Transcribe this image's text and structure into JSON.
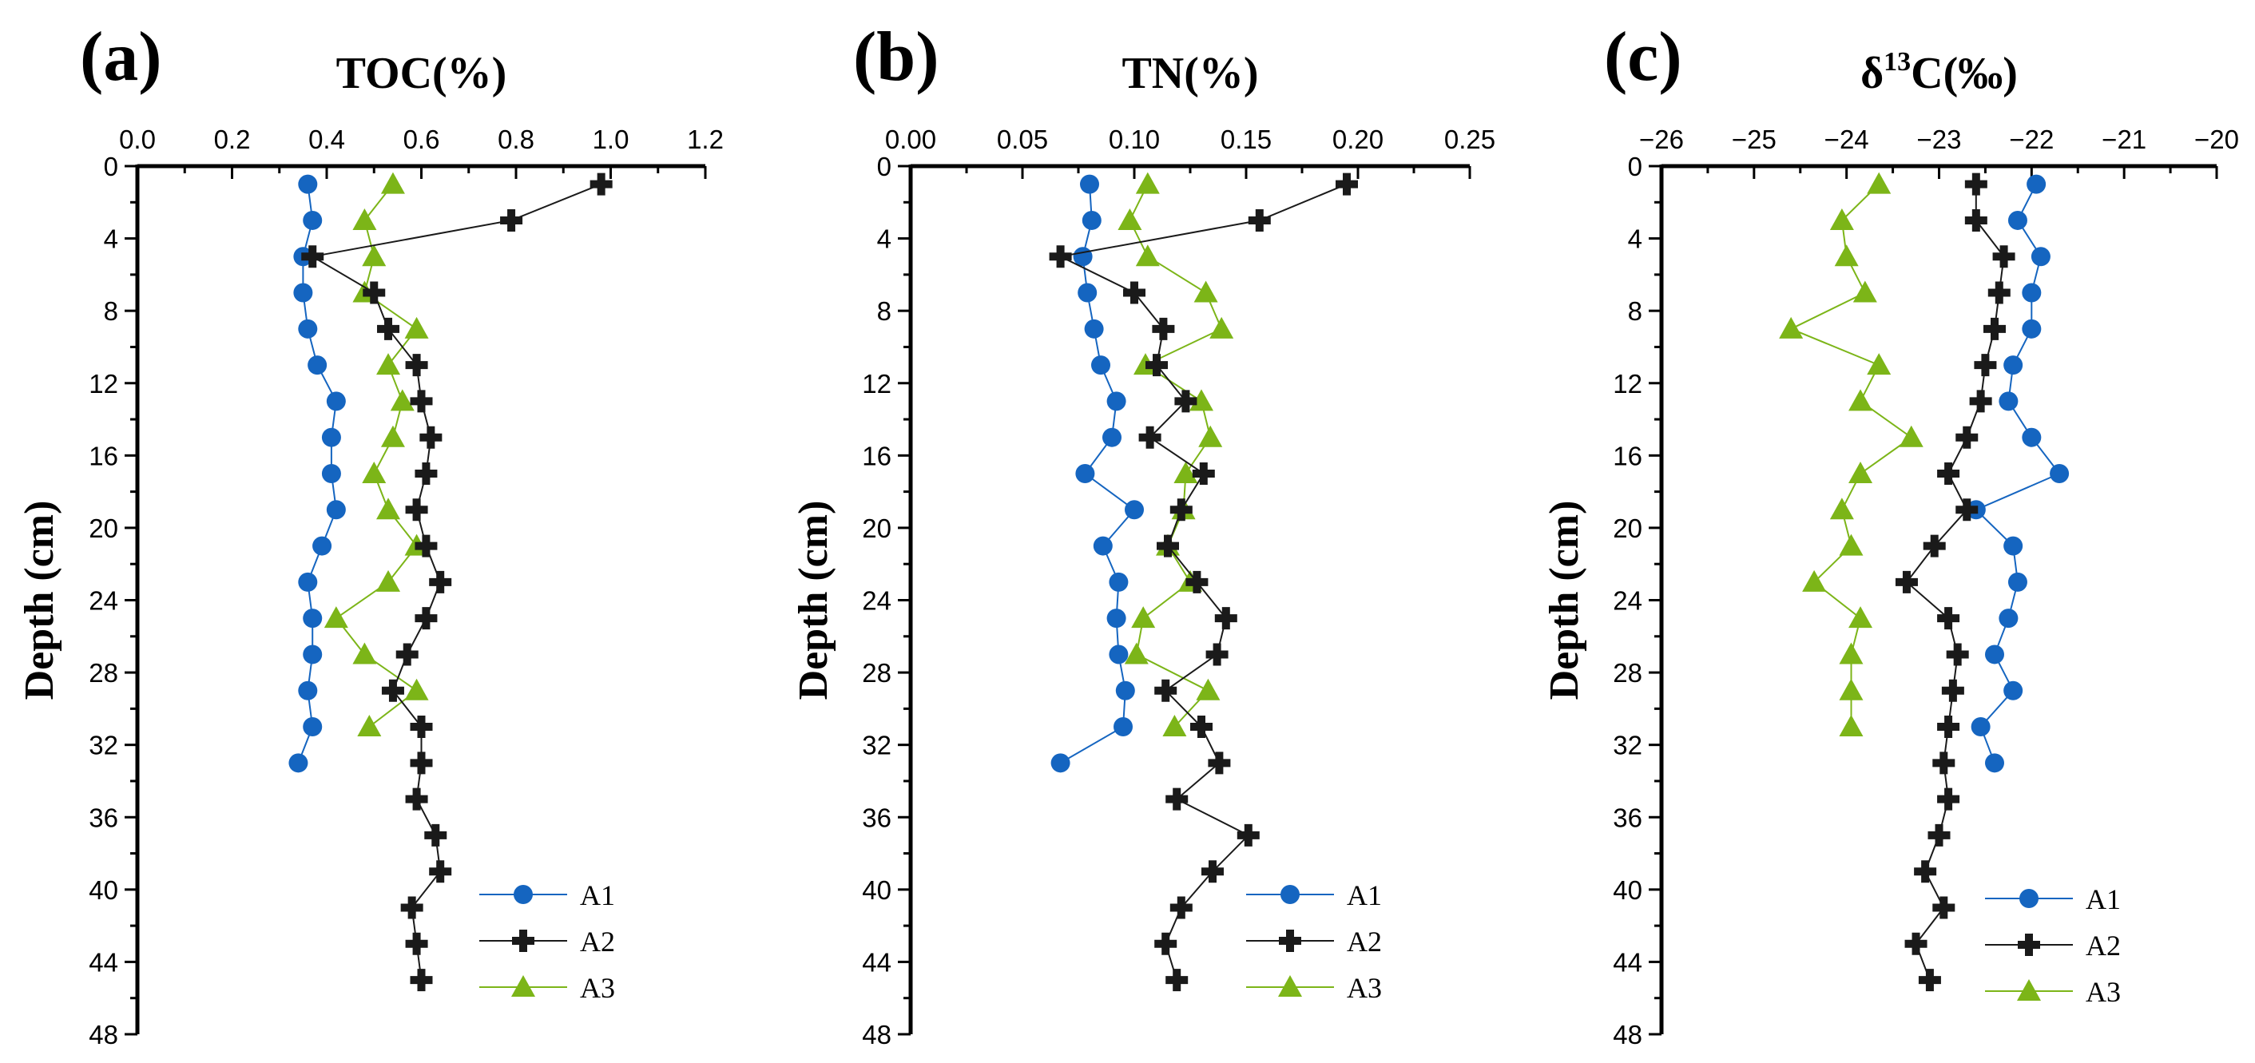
{
  "colors": {
    "A1": "#1565c0",
    "A2": "#1a1a1a",
    "A3": "#7cb518"
  },
  "chart_data": [
    {
      "type": "line",
      "panel": "(a)",
      "title": "TOC(%)",
      "xlabel": "TOC(%)",
      "ylabel": "Depth (cm)",
      "xlim": [
        0,
        1.2
      ],
      "ylim": [
        0,
        48
      ],
      "xticks": [
        0.0,
        0.2,
        0.4,
        0.6,
        0.8,
        1.0,
        1.2
      ],
      "xtick_labels": [
        "0.0",
        "0.2",
        "0.4",
        "0.6",
        "0.8",
        "1.0",
        "1.2"
      ],
      "yticks": [
        0,
        4,
        8,
        12,
        16,
        20,
        24,
        28,
        32,
        36,
        40,
        44,
        48
      ],
      "ytick_labels": [
        "0",
        "4",
        "8",
        "12",
        "16",
        "20",
        "24",
        "28",
        "32",
        "36",
        "40",
        "44",
        "48"
      ],
      "legend_position": "bottom-right",
      "series": [
        {
          "name": "A1",
          "marker": "circle",
          "x": [
            0.36,
            0.37,
            0.35,
            0.35,
            0.36,
            0.38,
            0.42,
            0.41,
            0.41,
            0.42,
            0.39,
            0.36,
            0.37,
            0.37,
            0.36,
            0.37,
            0.34
          ],
          "y": [
            1,
            3,
            5,
            7,
            9,
            11,
            13,
            15,
            17,
            19,
            21,
            23,
            25,
            27,
            29,
            31,
            33
          ]
        },
        {
          "name": "A2",
          "marker": "plus",
          "x": [
            0.98,
            0.79,
            0.37,
            0.5,
            0.53,
            0.59,
            0.6,
            0.62,
            0.61,
            0.59,
            0.61,
            0.64,
            0.61,
            0.57,
            0.54,
            0.6,
            0.6,
            0.59,
            0.63,
            0.64,
            0.58,
            0.59,
            0.6
          ],
          "y": [
            1,
            3,
            5,
            7,
            9,
            11,
            13,
            15,
            17,
            19,
            21,
            23,
            25,
            27,
            29,
            31,
            33,
            35,
            37,
            39,
            41,
            43,
            45
          ]
        },
        {
          "name": "A3",
          "marker": "triangle",
          "x": [
            0.54,
            0.48,
            0.5,
            0.48,
            0.59,
            0.53,
            0.56,
            0.54,
            0.5,
            0.53,
            0.59,
            0.53,
            0.42,
            0.48,
            0.59,
            0.49
          ],
          "y": [
            1,
            3,
            5,
            7,
            9,
            11,
            13,
            15,
            17,
            19,
            21,
            23,
            25,
            27,
            29,
            31
          ]
        }
      ]
    },
    {
      "type": "line",
      "panel": "(b)",
      "title": "TN(%)",
      "xlabel": "TN(%)",
      "ylabel": "Depth (cm)",
      "xlim": [
        0,
        0.25
      ],
      "ylim": [
        0,
        48
      ],
      "xticks": [
        0.0,
        0.05,
        0.1,
        0.15,
        0.2,
        0.25
      ],
      "xtick_labels": [
        "0.00",
        "0.05",
        "0.10",
        "0.15",
        "0.20",
        "0.25"
      ],
      "yticks": [
        0,
        4,
        8,
        12,
        16,
        20,
        24,
        28,
        32,
        36,
        40,
        44,
        48
      ],
      "ytick_labels": [
        "0",
        "4",
        "8",
        "12",
        "16",
        "20",
        "24",
        "28",
        "32",
        "36",
        "40",
        "44",
        "48"
      ],
      "legend_position": "bottom-right",
      "series": [
        {
          "name": "A1",
          "marker": "circle",
          "x": [
            0.08,
            0.081,
            0.077,
            0.079,
            0.082,
            0.085,
            0.092,
            0.09,
            0.078,
            0.1,
            0.086,
            0.093,
            0.092,
            0.093,
            0.096,
            0.095,
            0.067
          ],
          "y": [
            1,
            3,
            5,
            7,
            9,
            11,
            13,
            15,
            17,
            19,
            21,
            23,
            25,
            27,
            29,
            31,
            33
          ]
        },
        {
          "name": "A2",
          "marker": "plus",
          "x": [
            0.195,
            0.156,
            0.067,
            0.1,
            0.113,
            0.11,
            0.123,
            0.107,
            0.131,
            0.121,
            0.115,
            0.128,
            0.141,
            0.137,
            0.114,
            0.13,
            0.138,
            0.119,
            0.151,
            0.135,
            0.121,
            0.114,
            0.119
          ],
          "y": [
            1,
            3,
            5,
            7,
            9,
            11,
            13,
            15,
            17,
            19,
            21,
            23,
            25,
            27,
            29,
            31,
            33,
            35,
            37,
            39,
            41,
            43,
            45
          ]
        },
        {
          "name": "A3",
          "marker": "triangle",
          "x": [
            0.106,
            0.098,
            0.106,
            0.132,
            0.139,
            0.105,
            0.13,
            0.134,
            0.123,
            0.122,
            0.115,
            0.125,
            0.104,
            0.101,
            0.133,
            0.118
          ],
          "y": [
            1,
            3,
            5,
            7,
            9,
            11,
            13,
            15,
            17,
            19,
            21,
            23,
            25,
            27,
            29,
            31
          ]
        }
      ]
    },
    {
      "type": "line",
      "panel": "(c)",
      "title": "δ13C(‰)",
      "title_parts": {
        "symbol": "δ",
        "superscript": "13",
        "suffix": "C(‰)"
      },
      "xlabel": "δ13C(‰)",
      "ylabel": "Depth (cm)",
      "xlim": [
        -26,
        -20
      ],
      "ylim": [
        0,
        48
      ],
      "xticks": [
        -26,
        -25,
        -24,
        -23,
        -22,
        -21,
        -20
      ],
      "xtick_labels": [
        "−26",
        "−25",
        "−24",
        "−23",
        "−22",
        "−21",
        "−20"
      ],
      "yticks": [
        0,
        4,
        8,
        12,
        16,
        20,
        24,
        28,
        32,
        36,
        40,
        44,
        48
      ],
      "ytick_labels": [
        "0",
        "4",
        "8",
        "12",
        "16",
        "20",
        "24",
        "28",
        "32",
        "36",
        "40",
        "44",
        "48"
      ],
      "legend_position": "bottom-right",
      "series": [
        {
          "name": "A1",
          "marker": "circle",
          "x": [
            -21.95,
            -22.15,
            -21.9,
            -22.0,
            -22.0,
            -22.2,
            -22.25,
            -22.0,
            -21.7,
            -22.6,
            -22.2,
            -22.15,
            -22.25,
            -22.4,
            -22.2,
            -22.55,
            -22.4
          ],
          "y": [
            1,
            3,
            5,
            7,
            9,
            11,
            13,
            15,
            17,
            19,
            21,
            23,
            25,
            27,
            29,
            31,
            33
          ]
        },
        {
          "name": "A2",
          "marker": "plus",
          "x": [
            -22.6,
            -22.6,
            -22.3,
            -22.35,
            -22.4,
            -22.5,
            -22.55,
            -22.7,
            -22.9,
            -22.7,
            -23.05,
            -23.35,
            -22.9,
            -22.8,
            -22.85,
            -22.9,
            -22.95,
            -22.9,
            -23.0,
            -23.15,
            -22.95,
            -23.25,
            -23.1
          ],
          "y": [
            1,
            3,
            5,
            7,
            9,
            11,
            13,
            15,
            17,
            19,
            21,
            23,
            25,
            27,
            29,
            31,
            33,
            35,
            37,
            39,
            41,
            43,
            45
          ]
        },
        {
          "name": "A3",
          "marker": "triangle",
          "x": [
            -23.65,
            -24.05,
            -24.0,
            -23.8,
            -24.6,
            -23.65,
            -23.85,
            -23.3,
            -23.85,
            -24.05,
            -23.95,
            -24.35,
            -23.85,
            -23.95,
            -23.95,
            -23.95
          ],
          "y": [
            1,
            3,
            5,
            7,
            9,
            11,
            13,
            15,
            17,
            19,
            21,
            23,
            25,
            27,
            29,
            31
          ]
        }
      ]
    }
  ]
}
